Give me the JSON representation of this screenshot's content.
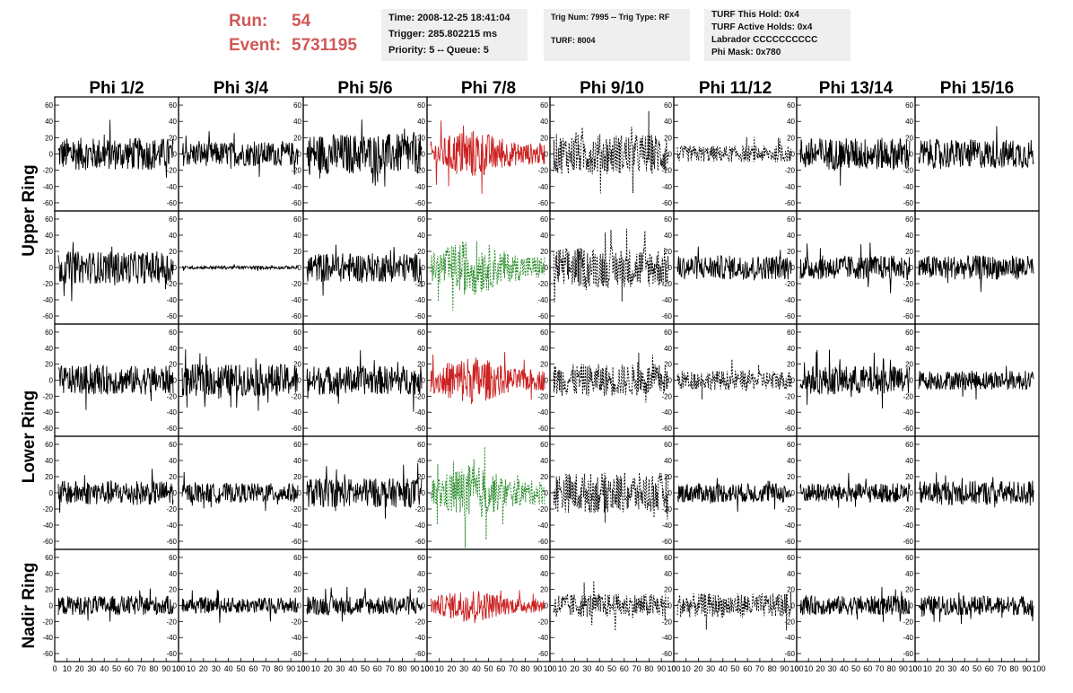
{
  "header": {
    "run_label": "Run:",
    "run_value": "54",
    "event_label": "Event:",
    "event_value": "5731195",
    "box1": [
      "Time: 2008-12-25 18:41:04",
      "Trigger: 285.802215 ms",
      "Priority: 5 -- Queue: 5"
    ],
    "box2": [
      "Trig Num: 7995 -- Trig Type: RF",
      "TURF: 8004"
    ],
    "box3": [
      "TURF This Hold: 0x4",
      "TURF Active Holds: 0x4",
      "Labrador CCCCCCCCCC",
      "Phi Mask: 0x780"
    ]
  },
  "chart_data": {
    "type": "line",
    "columns": [
      "Phi 1/2",
      "Phi 3/4",
      "Phi 5/6",
      "Phi 7/8",
      "Phi 9/10",
      "Phi 11/12",
      "Phi 13/14",
      "Phi 15/16"
    ],
    "ring_labels": [
      {
        "label": "Upper Ring",
        "rows": [
          0,
          1
        ]
      },
      {
        "label": "Lower Ring",
        "rows": [
          2,
          3
        ]
      },
      {
        "label": "Nadir Ring",
        "rows": [
          4
        ]
      }
    ],
    "ylim": [
      -70,
      70
    ],
    "yticks": [
      -60,
      -40,
      -20,
      0,
      20,
      40,
      60
    ],
    "xlim": [
      0,
      100
    ],
    "xticks": [
      "0",
      "10",
      "20",
      "30",
      "40",
      "50",
      "60",
      "70",
      "80",
      "90",
      "100"
    ],
    "colors": {
      "default": "#000000",
      "red": "#cc2222",
      "green": "#228822"
    },
    "panels": [
      [
        {
          "a": 20,
          "c": "default"
        },
        {
          "a": 15,
          "c": "default"
        },
        {
          "a": 25,
          "c": "default"
        },
        {
          "a": 22,
          "c": "red"
        },
        {
          "a": 25,
          "c": "default",
          "dash": true
        },
        {
          "a": 10,
          "c": "default",
          "dash": true
        },
        {
          "a": 20,
          "c": "default"
        },
        {
          "a": 18,
          "c": "default"
        }
      ],
      [
        {
          "a": 20,
          "c": "default"
        },
        {
          "a": 2,
          "c": "default"
        },
        {
          "a": 18,
          "c": "default"
        },
        {
          "a": 25,
          "c": "green",
          "dash": true
        },
        {
          "a": 25,
          "c": "default",
          "dash": true
        },
        {
          "a": 15,
          "c": "default"
        },
        {
          "a": 15,
          "c": "default"
        },
        {
          "a": 15,
          "c": "default"
        }
      ],
      [
        {
          "a": 18,
          "c": "default"
        },
        {
          "a": 20,
          "c": "default"
        },
        {
          "a": 18,
          "c": "default"
        },
        {
          "a": 22,
          "c": "red"
        },
        {
          "a": 20,
          "c": "default",
          "dash": true
        },
        {
          "a": 12,
          "c": "default",
          "dash": true
        },
        {
          "a": 18,
          "c": "default"
        },
        {
          "a": 12,
          "c": "default"
        }
      ],
      [
        {
          "a": 15,
          "c": "default"
        },
        {
          "a": 12,
          "c": "default"
        },
        {
          "a": 18,
          "c": "default"
        },
        {
          "a": 25,
          "c": "green",
          "dash": true
        },
        {
          "a": 25,
          "c": "default",
          "dash": true
        },
        {
          "a": 12,
          "c": "default"
        },
        {
          "a": 12,
          "c": "default"
        },
        {
          "a": 15,
          "c": "default"
        }
      ],
      [
        {
          "a": 12,
          "c": "default"
        },
        {
          "a": 10,
          "c": "default"
        },
        {
          "a": 12,
          "c": "default"
        },
        {
          "a": 15,
          "c": "red"
        },
        {
          "a": 15,
          "c": "default",
          "dash": true
        },
        {
          "a": 15,
          "c": "default",
          "dash": true
        },
        {
          "a": 12,
          "c": "default"
        },
        {
          "a": 12,
          "c": "default"
        }
      ]
    ]
  }
}
